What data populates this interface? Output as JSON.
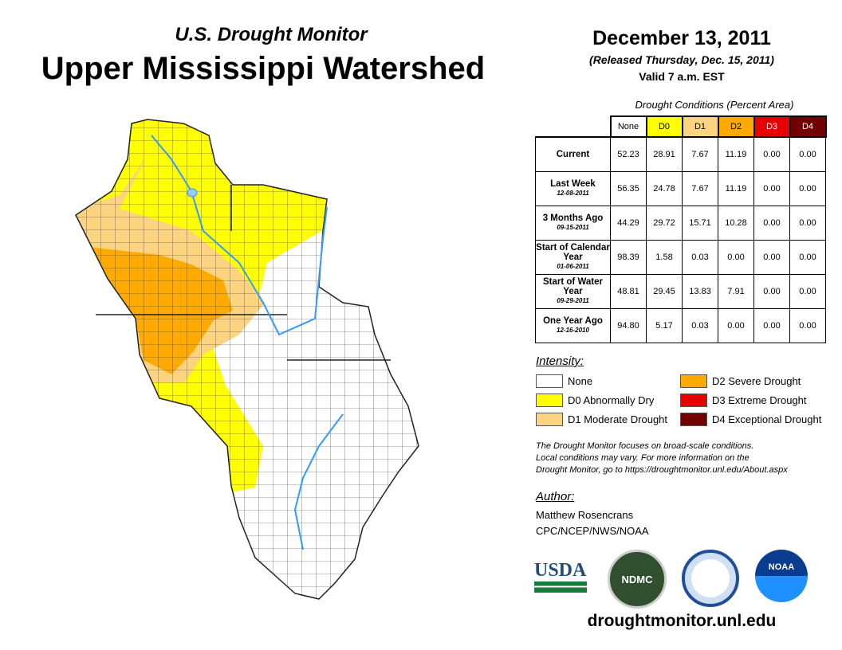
{
  "header": {
    "subtitle": "U.S. Drought Monitor",
    "title": "Upper Mississippi Watershed",
    "date": "December 13, 2011",
    "released": "(Released Thursday, Dec. 15, 2011)",
    "valid": "Valid 7 a.m. EST"
  },
  "table": {
    "caption": "Drought Conditions (Percent Area)",
    "columns": [
      "None",
      "D0",
      "D1",
      "D2",
      "D3",
      "D4"
    ],
    "rows": [
      {
        "label": "Current",
        "date": "",
        "values": [
          "52.23",
          "28.91",
          "7.67",
          "11.19",
          "0.00",
          "0.00"
        ]
      },
      {
        "label": "Last Week",
        "date": "12-08-2011",
        "values": [
          "56.35",
          "24.78",
          "7.67",
          "11.19",
          "0.00",
          "0.00"
        ]
      },
      {
        "label": "3 Months Ago",
        "date": "09-15-2011",
        "values": [
          "44.29",
          "29.72",
          "15.71",
          "10.28",
          "0.00",
          "0.00"
        ]
      },
      {
        "label": "Start of Calendar Year",
        "date": "01-06-2011",
        "values": [
          "98.39",
          "1.58",
          "0.03",
          "0.00",
          "0.00",
          "0.00"
        ]
      },
      {
        "label": "Start of Water Year",
        "date": "09-29-2011",
        "values": [
          "48.81",
          "29.45",
          "13.83",
          "7.91",
          "0.00",
          "0.00"
        ]
      },
      {
        "label": "One Year Ago",
        "date": "12-16-2010",
        "values": [
          "94.80",
          "5.17",
          "0.03",
          "0.00",
          "0.00",
          "0.00"
        ]
      }
    ]
  },
  "legend": {
    "title": "Intensity:",
    "items": [
      {
        "label": "None",
        "color": "#ffffff"
      },
      {
        "label": "D0 Abnormally Dry",
        "color": "#ffff00"
      },
      {
        "label": "D1 Moderate Drought",
        "color": "#fcd37f"
      },
      {
        "label": "D2 Severe Drought",
        "color": "#ffaa00"
      },
      {
        "label": "D3 Extreme Drought",
        "color": "#e60000"
      },
      {
        "label": "D4 Exceptional Drought",
        "color": "#730000"
      }
    ]
  },
  "note": [
    "The Drought Monitor focuses on broad-scale conditions.",
    "Local conditions may vary. For more information on the",
    "Drought Monitor, go to https://droughtmonitor.unl.edu/About.aspx"
  ],
  "author": {
    "heading": "Author:",
    "name": "Matthew Rosencrans",
    "org": "CPC/NCEP/NWS/NOAA"
  },
  "logos": {
    "usda": "USDA",
    "ndmc": "NDMC",
    "noaa": "NOAA"
  },
  "footer_url": "droughtmonitor.unl.edu"
}
